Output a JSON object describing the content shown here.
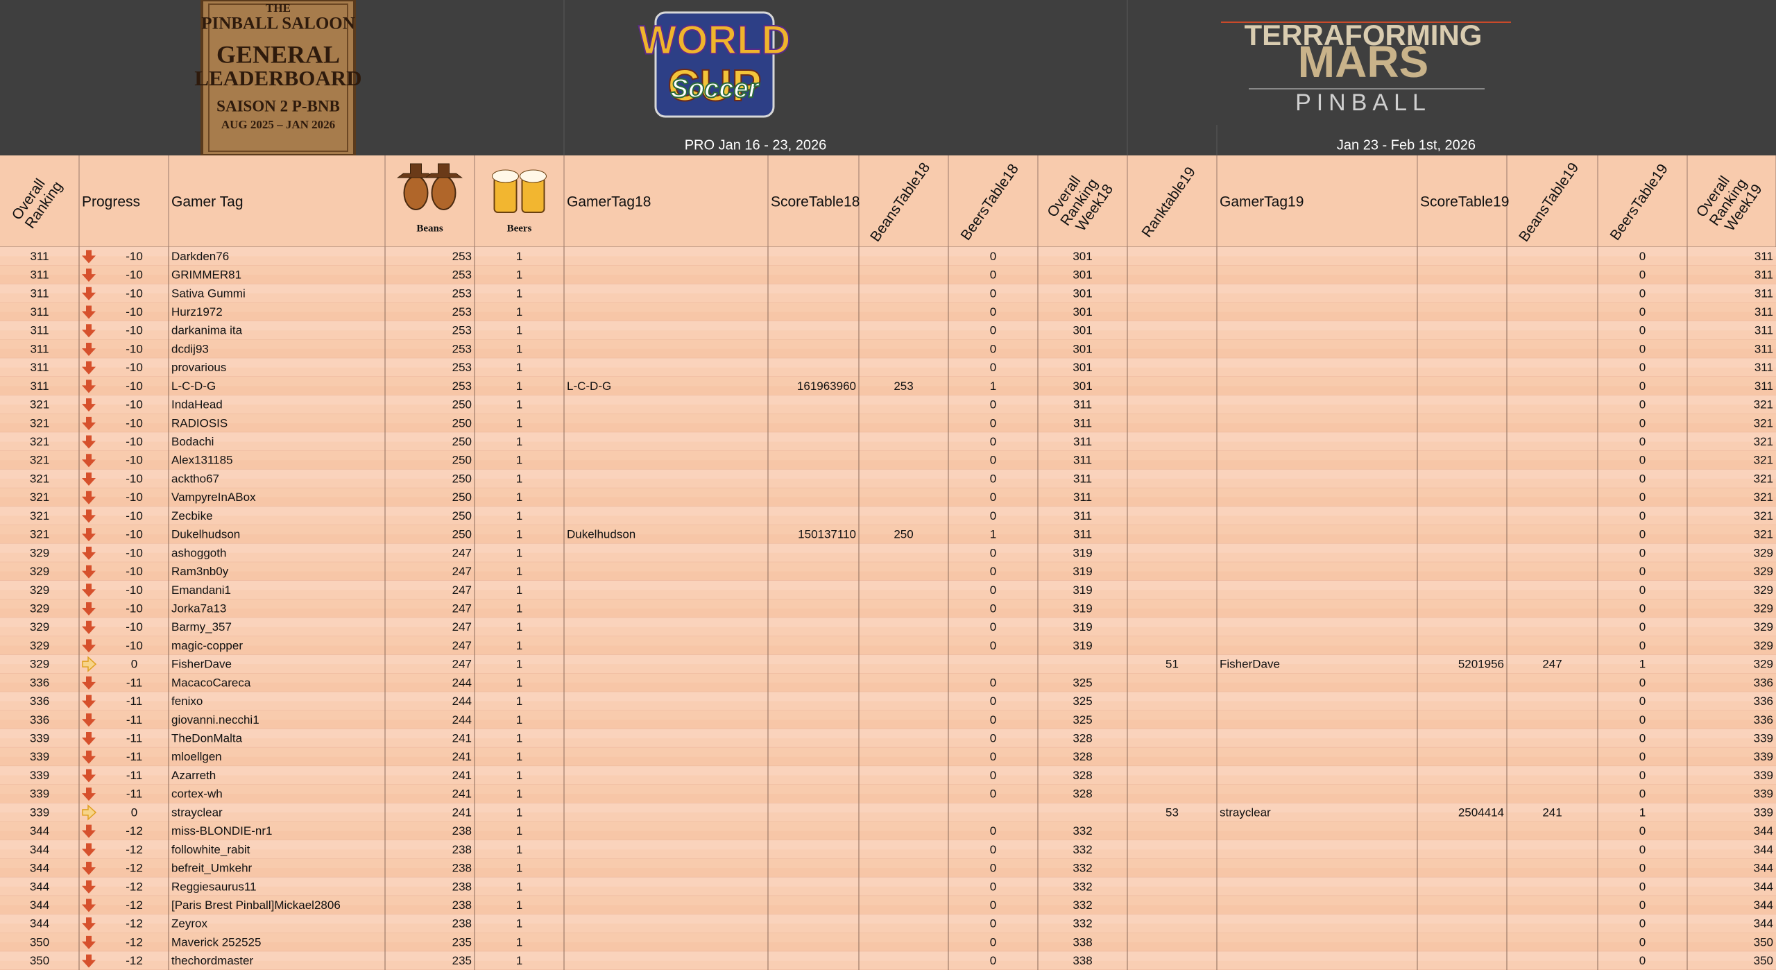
{
  "banner": {
    "saloon": [
      "THE",
      "PINBALL SALOON",
      "GENERAL",
      "LEADERBOARD",
      "SAISON 2 P-BNB",
      "AUG 2025 – JAN 2026"
    ],
    "world_cup": [
      "WORLD",
      "CUP",
      "Soccer"
    ],
    "terraforming": [
      "TERRAFORMING",
      "MARS",
      "PINBALL"
    ],
    "week18_dates": "PRO Jan 16 - 23, 2026",
    "week19_dates": "Jan 23 - Feb 1st, 2026"
  },
  "table": {
    "columns": [
      [
        "Overall",
        "Ranking"
      ],
      [
        "Progress"
      ],
      [
        "Gamer Tag"
      ],
      [
        "Beans"
      ],
      [
        "Beers"
      ],
      [
        "GamerTag18"
      ],
      [
        "ScoreTable18"
      ],
      [
        "BeansTable18"
      ],
      [
        "BeersTable18"
      ],
      [
        "Overall",
        "Ranking",
        "Week18"
      ],
      [
        "Ranktable19"
      ],
      [
        "GamerTag19"
      ],
      [
        "ScoreTable19"
      ],
      [
        "BeansTable19"
      ],
      [
        "BeersTable19"
      ],
      [
        "Overall",
        "Ranking",
        "Week19"
      ]
    ],
    "rows": [
      [
        311,
        -10,
        "Darkden76",
        253,
        1,
        null,
        null,
        null,
        0,
        301,
        null,
        null,
        null,
        null,
        0,
        311
      ],
      [
        311,
        -10,
        "GRIMMER81",
        253,
        1,
        null,
        null,
        null,
        0,
        301,
        null,
        null,
        null,
        null,
        0,
        311
      ],
      [
        311,
        -10,
        "Sativa Gummi",
        253,
        1,
        null,
        null,
        null,
        0,
        301,
        null,
        null,
        null,
        null,
        0,
        311
      ],
      [
        311,
        -10,
        "Hurz1972",
        253,
        1,
        null,
        null,
        null,
        0,
        301,
        null,
        null,
        null,
        null,
        0,
        311
      ],
      [
        311,
        -10,
        "darkanima ita",
        253,
        1,
        null,
        null,
        null,
        0,
        301,
        null,
        null,
        null,
        null,
        0,
        311
      ],
      [
        311,
        -10,
        "dcdij93",
        253,
        1,
        null,
        null,
        null,
        0,
        301,
        null,
        null,
        null,
        null,
        0,
        311
      ],
      [
        311,
        -10,
        "provarious",
        253,
        1,
        null,
        null,
        null,
        0,
        301,
        null,
        null,
        null,
        null,
        0,
        311
      ],
      [
        311,
        -10,
        "L-C-D-G",
        253,
        1,
        "L-C-D-G",
        161963960,
        253,
        1,
        301,
        null,
        null,
        null,
        null,
        0,
        311
      ],
      [
        321,
        -10,
        "IndaHead",
        250,
        1,
        null,
        null,
        null,
        0,
        311,
        null,
        null,
        null,
        null,
        0,
        321
      ],
      [
        321,
        -10,
        "RADIOSIS",
        250,
        1,
        null,
        null,
        null,
        0,
        311,
        null,
        null,
        null,
        null,
        0,
        321
      ],
      [
        321,
        -10,
        "Bodachi",
        250,
        1,
        null,
        null,
        null,
        0,
        311,
        null,
        null,
        null,
        null,
        0,
        321
      ],
      [
        321,
        -10,
        "Alex131185",
        250,
        1,
        null,
        null,
        null,
        0,
        311,
        null,
        null,
        null,
        null,
        0,
        321
      ],
      [
        321,
        -10,
        "acktho67",
        250,
        1,
        null,
        null,
        null,
        0,
        311,
        null,
        null,
        null,
        null,
        0,
        321
      ],
      [
        321,
        -10,
        "VampyreInABox",
        250,
        1,
        null,
        null,
        null,
        0,
        311,
        null,
        null,
        null,
        null,
        0,
        321
      ],
      [
        321,
        -10,
        "Zecbike",
        250,
        1,
        null,
        null,
        null,
        0,
        311,
        null,
        null,
        null,
        null,
        0,
        321
      ],
      [
        321,
        -10,
        "Dukelhudson",
        250,
        1,
        "Dukelhudson",
        150137110,
        250,
        1,
        311,
        null,
        null,
        null,
        null,
        0,
        321
      ],
      [
        329,
        -10,
        "ashoggoth",
        247,
        1,
        null,
        null,
        null,
        0,
        319,
        null,
        null,
        null,
        null,
        0,
        329
      ],
      [
        329,
        -10,
        "Ram3nb0y",
        247,
        1,
        null,
        null,
        null,
        0,
        319,
        null,
        null,
        null,
        null,
        0,
        329
      ],
      [
        329,
        -10,
        "Emandani1",
        247,
        1,
        null,
        null,
        null,
        0,
        319,
        null,
        null,
        null,
        null,
        0,
        329
      ],
      [
        329,
        -10,
        "Jorka7a13",
        247,
        1,
        null,
        null,
        null,
        0,
        319,
        null,
        null,
        null,
        null,
        0,
        329
      ],
      [
        329,
        -10,
        "Barmy_357",
        247,
        1,
        null,
        null,
        null,
        0,
        319,
        null,
        null,
        null,
        null,
        0,
        329
      ],
      [
        329,
        -10,
        "magic-copper",
        247,
        1,
        null,
        null,
        null,
        0,
        319,
        null,
        null,
        null,
        null,
        0,
        329
      ],
      [
        329,
        0,
        "FisherDave",
        247,
        1,
        null,
        null,
        null,
        null,
        null,
        51,
        "FisherDave",
        5201956,
        247,
        1,
        329
      ],
      [
        336,
        -11,
        "MacacoCareca",
        244,
        1,
        null,
        null,
        null,
        0,
        325,
        null,
        null,
        null,
        null,
        0,
        336
      ],
      [
        336,
        -11,
        "fenixo",
        244,
        1,
        null,
        null,
        null,
        0,
        325,
        null,
        null,
        null,
        null,
        0,
        336
      ],
      [
        336,
        -11,
        "giovanni.necchi1",
        244,
        1,
        null,
        null,
        null,
        0,
        325,
        null,
        null,
        null,
        null,
        0,
        336
      ],
      [
        339,
        -11,
        "TheDonMalta",
        241,
        1,
        null,
        null,
        null,
        0,
        328,
        null,
        null,
        null,
        null,
        0,
        339
      ],
      [
        339,
        -11,
        "mloellgen",
        241,
        1,
        null,
        null,
        null,
        0,
        328,
        null,
        null,
        null,
        null,
        0,
        339
      ],
      [
        339,
        -11,
        "Azarreth",
        241,
        1,
        null,
        null,
        null,
        0,
        328,
        null,
        null,
        null,
        null,
        0,
        339
      ],
      [
        339,
        -11,
        "cortex-wh",
        241,
        1,
        null,
        null,
        null,
        0,
        328,
        null,
        null,
        null,
        null,
        0,
        339
      ],
      [
        339,
        0,
        "strayclear",
        241,
        1,
        null,
        null,
        null,
        null,
        null,
        53,
        "strayclear",
        2504414,
        241,
        1,
        339
      ],
      [
        344,
        -12,
        "miss-BLONDIE-nr1",
        238,
        1,
        null,
        null,
        null,
        0,
        332,
        null,
        null,
        null,
        null,
        0,
        344
      ],
      [
        344,
        -12,
        "followhite_rabit",
        238,
        1,
        null,
        null,
        null,
        0,
        332,
        null,
        null,
        null,
        null,
        0,
        344
      ],
      [
        344,
        -12,
        "befreit_Umkehr",
        238,
        1,
        null,
        null,
        null,
        0,
        332,
        null,
        null,
        null,
        null,
        0,
        344
      ],
      [
        344,
        -12,
        "Reggiesaurus11",
        238,
        1,
        null,
        null,
        null,
        0,
        332,
        null,
        null,
        null,
        null,
        0,
        344
      ],
      [
        344,
        -12,
        "[Paris Brest Pinball]Mickael2806",
        238,
        1,
        null,
        null,
        null,
        0,
        332,
        null,
        null,
        null,
        null,
        0,
        344
      ],
      [
        344,
        -12,
        "Zeyrox",
        238,
        1,
        null,
        null,
        null,
        0,
        332,
        null,
        null,
        null,
        null,
        0,
        344
      ],
      [
        350,
        -12,
        "Maverick 252525",
        235,
        1,
        null,
        null,
        null,
        0,
        338,
        null,
        null,
        null,
        null,
        0,
        350
      ],
      [
        350,
        -12,
        "thechordmaster",
        235,
        1,
        null,
        null,
        null,
        0,
        338,
        null,
        null,
        null,
        null,
        0,
        350
      ]
    ]
  }
}
